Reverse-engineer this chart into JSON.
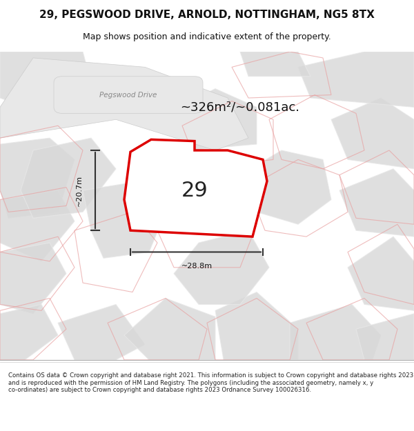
{
  "title_line1": "29, PEGSWOOD DRIVE, ARNOLD, NOTTINGHAM, NG5 8TX",
  "title_line2": "Map shows position and indicative extent of the property.",
  "area_label": "~326m²/~0.081ac.",
  "property_number": "29",
  "dim_height": "~20.7m",
  "dim_width": "~28.8m",
  "road_label": "Pegswood Drive",
  "footer_text": "Contains OS data © Crown copyright and database right 2021. This information is subject to Crown copyright and database rights 2023 and is reproduced with the permission of HM Land Registry. The polygons (including the associated geometry, namely x, y co-ordinates) are subject to Crown copyright and database rights 2023 Ordnance Survey 100026316.",
  "bg_color": "#f5f5f5",
  "map_bg_color": "#f0eeee",
  "property_fill": "#ffffff",
  "property_edge": "#dd0000",
  "other_property_fill": "#d8d8d8",
  "other_property_edge": "#cccccc",
  "road_outline_color": "#e8e8e8",
  "pink_outline_color": "#e8a0a0",
  "road_label_color": "#888888",
  "road_pill_color": "#e8e8e8"
}
